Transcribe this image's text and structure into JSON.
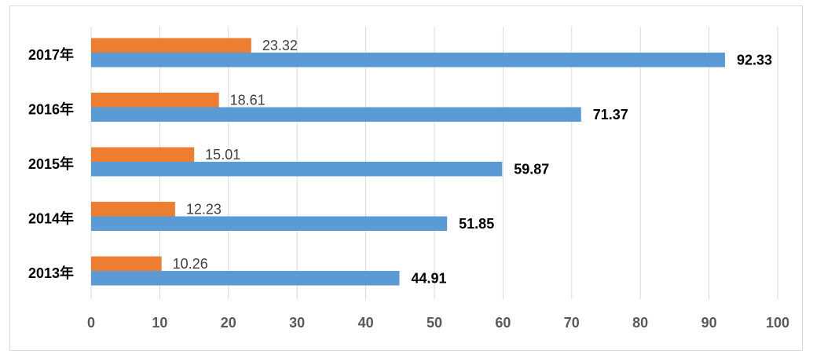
{
  "chart_data": {
    "type": "bar",
    "orientation": "horizontal",
    "categories": [
      "2013年",
      "2014年",
      "2015年",
      "2016年",
      "2017年"
    ],
    "series": [
      {
        "values": [
          10.26,
          12.23,
          15.01,
          18.61,
          23.32
        ],
        "color": "#ed7d31"
      },
      {
        "values": [
          44.91,
          51.85,
          59.87,
          71.37,
          92.33
        ],
        "color": "#5b9bd5"
      }
    ],
    "x_ticks": [
      "0",
      "10",
      "20",
      "30",
      "40",
      "50",
      "60",
      "70",
      "80",
      "90",
      "100"
    ],
    "xlim": [
      0,
      100
    ],
    "grid": true,
    "legend": false,
    "title": "",
    "xlabel": "",
    "ylabel": ""
  }
}
